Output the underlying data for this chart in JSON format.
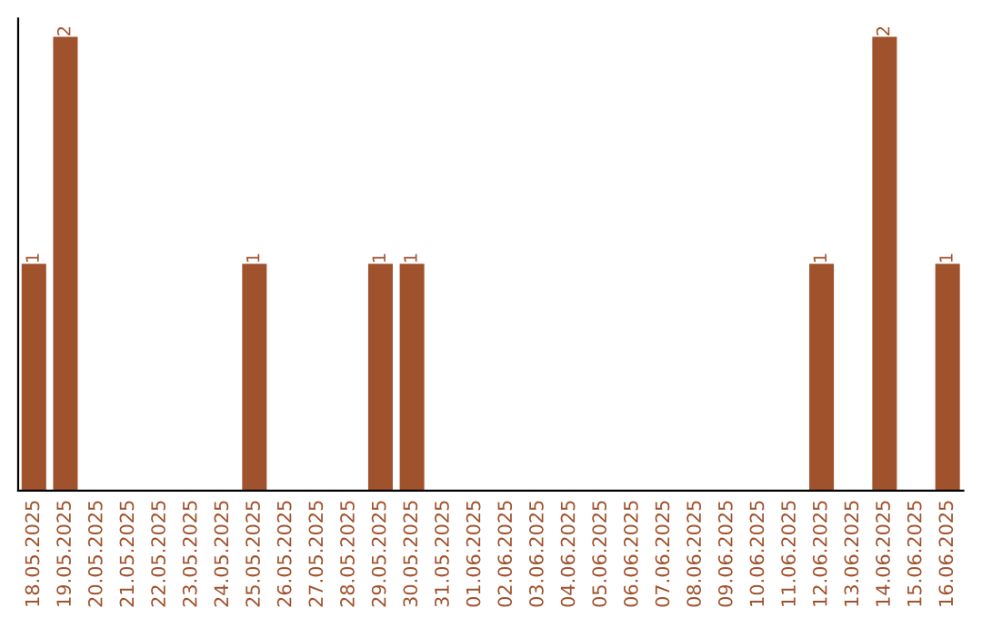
{
  "chart_data": {
    "type": "bar",
    "categories": [
      "18.05.2025",
      "19.05.2025",
      "20.05.2025",
      "21.05.2025",
      "22.05.2025",
      "23.05.2025",
      "24.05.2025",
      "25.05.2025",
      "26.05.2025",
      "27.05.2025",
      "28.05.2025",
      "29.05.2025",
      "30.05.2025",
      "31.05.2025",
      "01.06.2025",
      "02.06.2025",
      "03.06.2025",
      "04.06.2025",
      "05.06.2025",
      "06.06.2025",
      "07.06.2025",
      "08.06.2025",
      "09.06.2025",
      "10.06.2025",
      "11.06.2025",
      "12.06.2025",
      "13.06.2025",
      "14.06.2025",
      "15.06.2025",
      "16.06.2025"
    ],
    "values": [
      1,
      2,
      0,
      0,
      0,
      0,
      0,
      1,
      0,
      0,
      0,
      1,
      1,
      0,
      0,
      0,
      0,
      0,
      0,
      0,
      0,
      0,
      0,
      0,
      0,
      1,
      0,
      2,
      0,
      1
    ],
    "color": "#a0522d",
    "value_labels": [
      "1",
      "2",
      null,
      null,
      null,
      null,
      null,
      "1",
      null,
      null,
      null,
      "1",
      "1",
      null,
      null,
      null,
      null,
      null,
      null,
      null,
      null,
      null,
      null,
      null,
      null,
      "1",
      null,
      "2",
      null,
      "1"
    ],
    "ylim": [
      0,
      2.08
    ],
    "tick_labels": "x",
    "grid": false,
    "legend": false
  }
}
